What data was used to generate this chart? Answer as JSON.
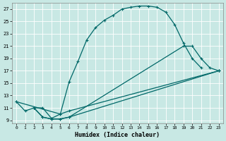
{
  "bg_color": "#c8e8e4",
  "grid_color": "#b8d8d4",
  "line_color": "#006868",
  "xlabel": "Humidex (Indice chaleur)",
  "xlim": [
    -0.5,
    23.5
  ],
  "ylim": [
    8.5,
    28.0
  ],
  "xticks": [
    0,
    1,
    2,
    3,
    4,
    5,
    6,
    7,
    8,
    9,
    10,
    11,
    12,
    13,
    14,
    15,
    16,
    17,
    18,
    19,
    20,
    21,
    22,
    23
  ],
  "yticks": [
    9,
    11,
    13,
    15,
    17,
    19,
    21,
    23,
    25,
    27
  ],
  "curve1_x": [
    0,
    1,
    2,
    3,
    4,
    5,
    6,
    7,
    8,
    9,
    10,
    11,
    12,
    13,
    14,
    15,
    16,
    17,
    18,
    19,
    20,
    21
  ],
  "curve1_y": [
    12.0,
    10.5,
    11.0,
    11.0,
    9.3,
    10.0,
    15.2,
    18.5,
    22.0,
    24.0,
    25.2,
    26.0,
    27.0,
    27.3,
    27.5,
    27.5,
    27.3,
    26.5,
    24.5,
    21.5,
    19.0,
    17.5
  ],
  "curve2_x": [
    2,
    3,
    4,
    5,
    6,
    19,
    20,
    21,
    22,
    23
  ],
  "curve2_y": [
    11.0,
    9.5,
    9.2,
    9.2,
    9.5,
    21.0,
    21.0,
    19.0,
    17.5,
    17.0
  ],
  "curve3_x": [
    0,
    5,
    6,
    23
  ],
  "curve3_y": [
    12.0,
    10.0,
    10.5,
    17.0
  ],
  "curve4_x": [
    2,
    3,
    4,
    5,
    6,
    23
  ],
  "curve4_y": [
    11.0,
    9.5,
    9.2,
    9.2,
    9.5,
    17.0
  ]
}
